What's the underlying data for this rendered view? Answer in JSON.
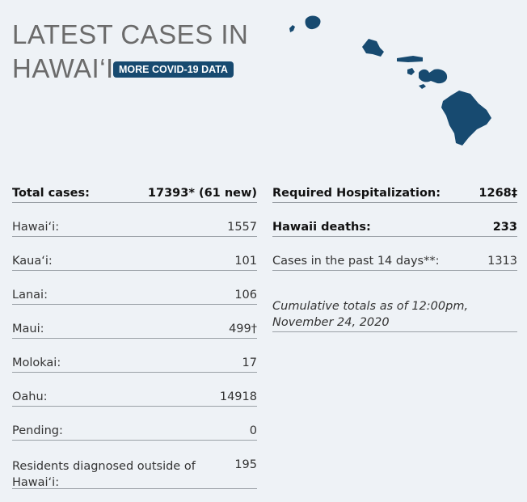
{
  "header": {
    "title_line1": "LATEST CASES IN",
    "title_line2": "HAWAI‘I",
    "button_label": "MORE COVID-19 DATA"
  },
  "map": {
    "island_color": "#174a70",
    "icon": "hawaii-islands-map"
  },
  "left_stats": [
    {
      "label": "Total cases:",
      "value": "17393* (61 new)"
    },
    {
      "label": "Hawai‘i:",
      "value": "1557"
    },
    {
      "label": "Kaua‘i:",
      "value": "101"
    },
    {
      "label": "Lanai:",
      "value": "106"
    },
    {
      "label": "Maui:",
      "value": "499†"
    },
    {
      "label": "Molokai:",
      "value": "17"
    },
    {
      "label": "Oahu:",
      "value": "14918"
    },
    {
      "label": "Pending:",
      "value": "0"
    },
    {
      "label": "Residents diagnosed outside of Hawai‘i:",
      "value": "195"
    }
  ],
  "right_stats": [
    {
      "label": "Required Hospitalization:",
      "value": "1268‡"
    },
    {
      "label": "Hawaii deaths:",
      "value": "233"
    },
    {
      "label": "Cases in the past 14 days**:",
      "value": "1313"
    }
  ],
  "note": "Cumulative totals as of 12:00pm, November 24, 2020"
}
